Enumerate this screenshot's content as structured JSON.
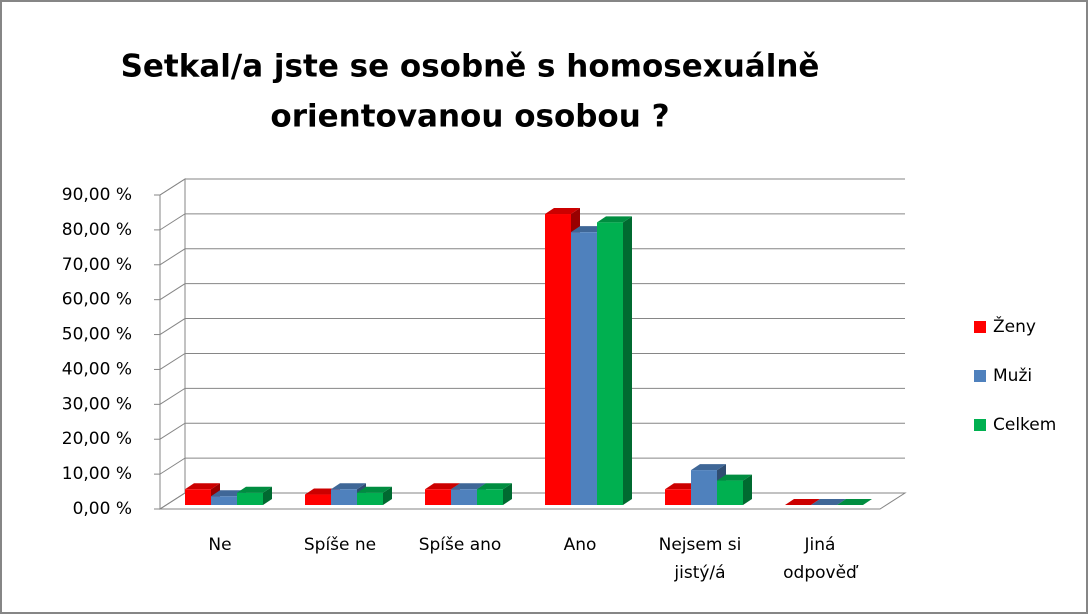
{
  "chart_data": {
    "type": "bar3d",
    "title": [
      "Setkal/a jste se osobně s homosexuálně",
      "orientovanou osobou ?"
    ],
    "categories": [
      "Ne",
      "Spíše ne",
      "Spíše ano",
      "Ano",
      [
        "Nejsem si",
        "jistý/á"
      ],
      [
        "Jiná",
        "odpověď"
      ]
    ],
    "series": [
      {
        "name": "Ženy",
        "color": "#ff0000",
        "values": [
          4.5,
          3,
          4.5,
          83.4,
          4.5,
          0
        ]
      },
      {
        "name": "Muži",
        "color": "#4f81bd",
        "values": [
          2.5,
          4.5,
          4.5,
          78.2,
          10,
          0
        ]
      },
      {
        "name": "Celkem",
        "color": "#00b050",
        "values": [
          3.5,
          3.5,
          4.5,
          81,
          7,
          0
        ]
      }
    ],
    "ylim": [
      0,
      90
    ],
    "yticks": [
      {
        "value": 0,
        "label": "0,00 %"
      },
      {
        "value": 10,
        "label": "10,00 %"
      },
      {
        "value": 20,
        "label": "20,00 %"
      },
      {
        "value": 30,
        "label": "30,00 %"
      },
      {
        "value": 40,
        "label": "40,00 %"
      },
      {
        "value": 50,
        "label": "50,00 %"
      },
      {
        "value": 60,
        "label": "60,00 %"
      },
      {
        "value": 70,
        "label": "70,00 %"
      },
      {
        "value": 80,
        "label": "80,00 %"
      },
      {
        "value": 90,
        "label": "90,00 %"
      }
    ],
    "grid": true,
    "legend": "right"
  }
}
